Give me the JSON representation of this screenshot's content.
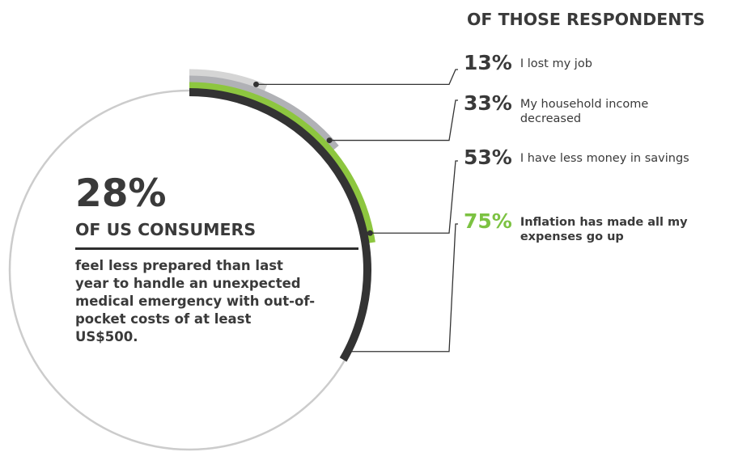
{
  "chart_data": {
    "type": "radial-bar",
    "headline": {
      "value": "28%",
      "subtitle": "OF US CONSUMERS",
      "description": "feel less prepared than last year to handle an unexpected medical emergency with out-of-pocket costs of at least US$500."
    },
    "respondents_title": "OF THOSE RESPONDENTS",
    "series": [
      {
        "value": 13,
        "value_label": "13%",
        "label": "I lost my job",
        "color": "#d5d5d5",
        "pct_color": "#3a3a3a",
        "label_bold": false
      },
      {
        "value": 33,
        "value_label": "33%",
        "label": "My household income decreased",
        "color": "#b0b1b5",
        "pct_color": "#3a3a3a",
        "label_bold": false
      },
      {
        "value": 53,
        "value_label": "53%",
        "label": "I have less money in savings",
        "color": "#8dc63f",
        "pct_color": "#3a3a3a",
        "label_bold": false
      },
      {
        "value": 75,
        "value_label": "75%",
        "label": "Inflation has made all my expenses go up",
        "color": "#333333",
        "pct_color": "#7cc242",
        "label_bold": true
      }
    ],
    "outer_circle_color": "#cccccc",
    "leader_line_color": "#333333"
  }
}
